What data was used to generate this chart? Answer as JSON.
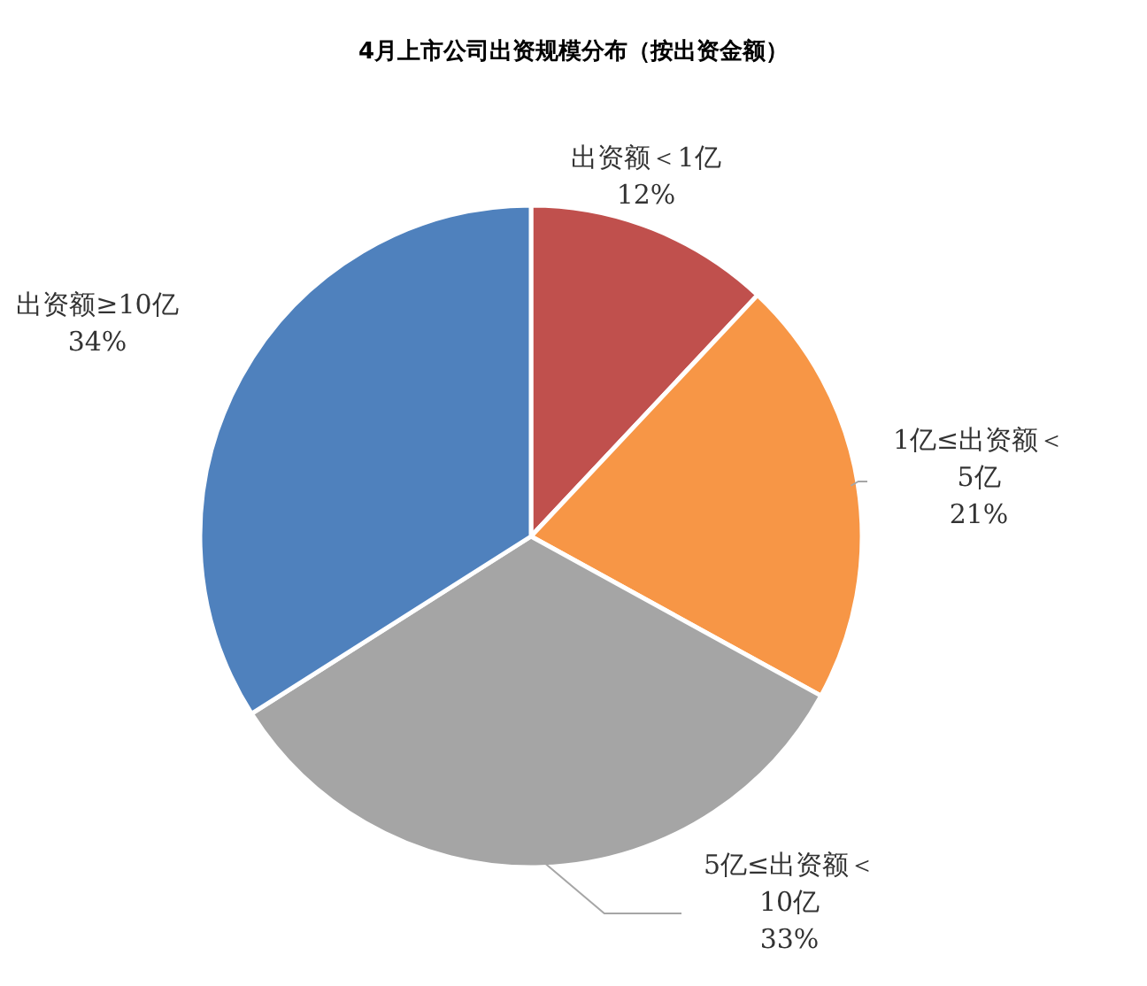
{
  "chart_data": {
    "type": "pie",
    "title": "4月上市公司出资规模分布（按出资金额）",
    "categories": [
      "出资额＜1亿",
      "1亿≤出资额＜5亿",
      "5亿≤出资额＜10亿",
      "出资额≥10亿"
    ],
    "values": [
      12,
      21,
      33,
      34
    ],
    "value_labels": [
      "12%",
      "21%",
      "33%",
      "34%"
    ],
    "colors": [
      "#c0504d",
      "#f79646",
      "#a5a5a5",
      "#4f81bd"
    ]
  }
}
